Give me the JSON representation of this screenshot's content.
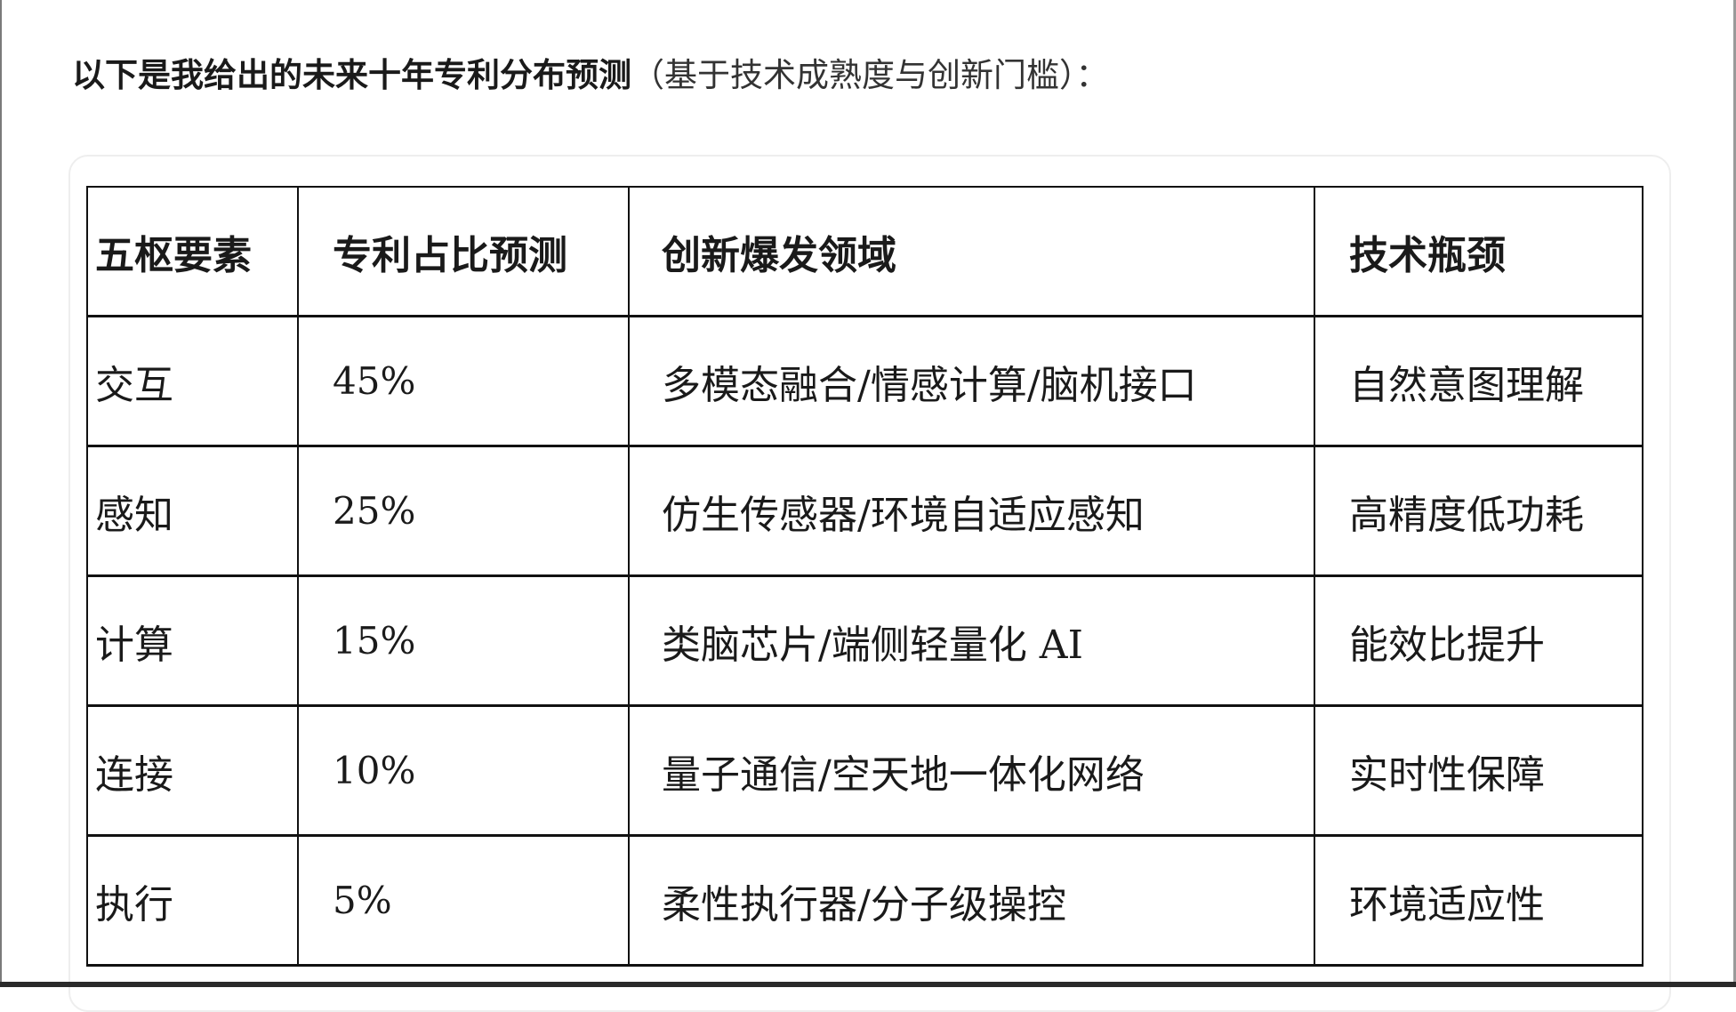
{
  "intro": {
    "bold": "以下是我给出的未来十年专利分布预测",
    "normal": "（基于技术成熟度与创新门槛）："
  },
  "table": {
    "headers": [
      "五枢要素",
      "专利占比预测",
      "创新爆发领域",
      "技术瓶颈"
    ],
    "rows": [
      [
        "交互",
        "45%",
        "多模态融合/情感计算/脑机接口",
        "自然意图理解"
      ],
      [
        "感知",
        "25%",
        "仿生传感器/环境自适应感知",
        "高精度低功耗"
      ],
      [
        "计算",
        "15%",
        "类脑芯片/端侧轻量化 AI",
        "能效比提升"
      ],
      [
        "连接",
        "10%",
        "量子通信/空天地一体化网络",
        "实时性保障"
      ],
      [
        "执行",
        "5%",
        "柔性执行器/分子级操控",
        "环境适应性"
      ]
    ]
  }
}
